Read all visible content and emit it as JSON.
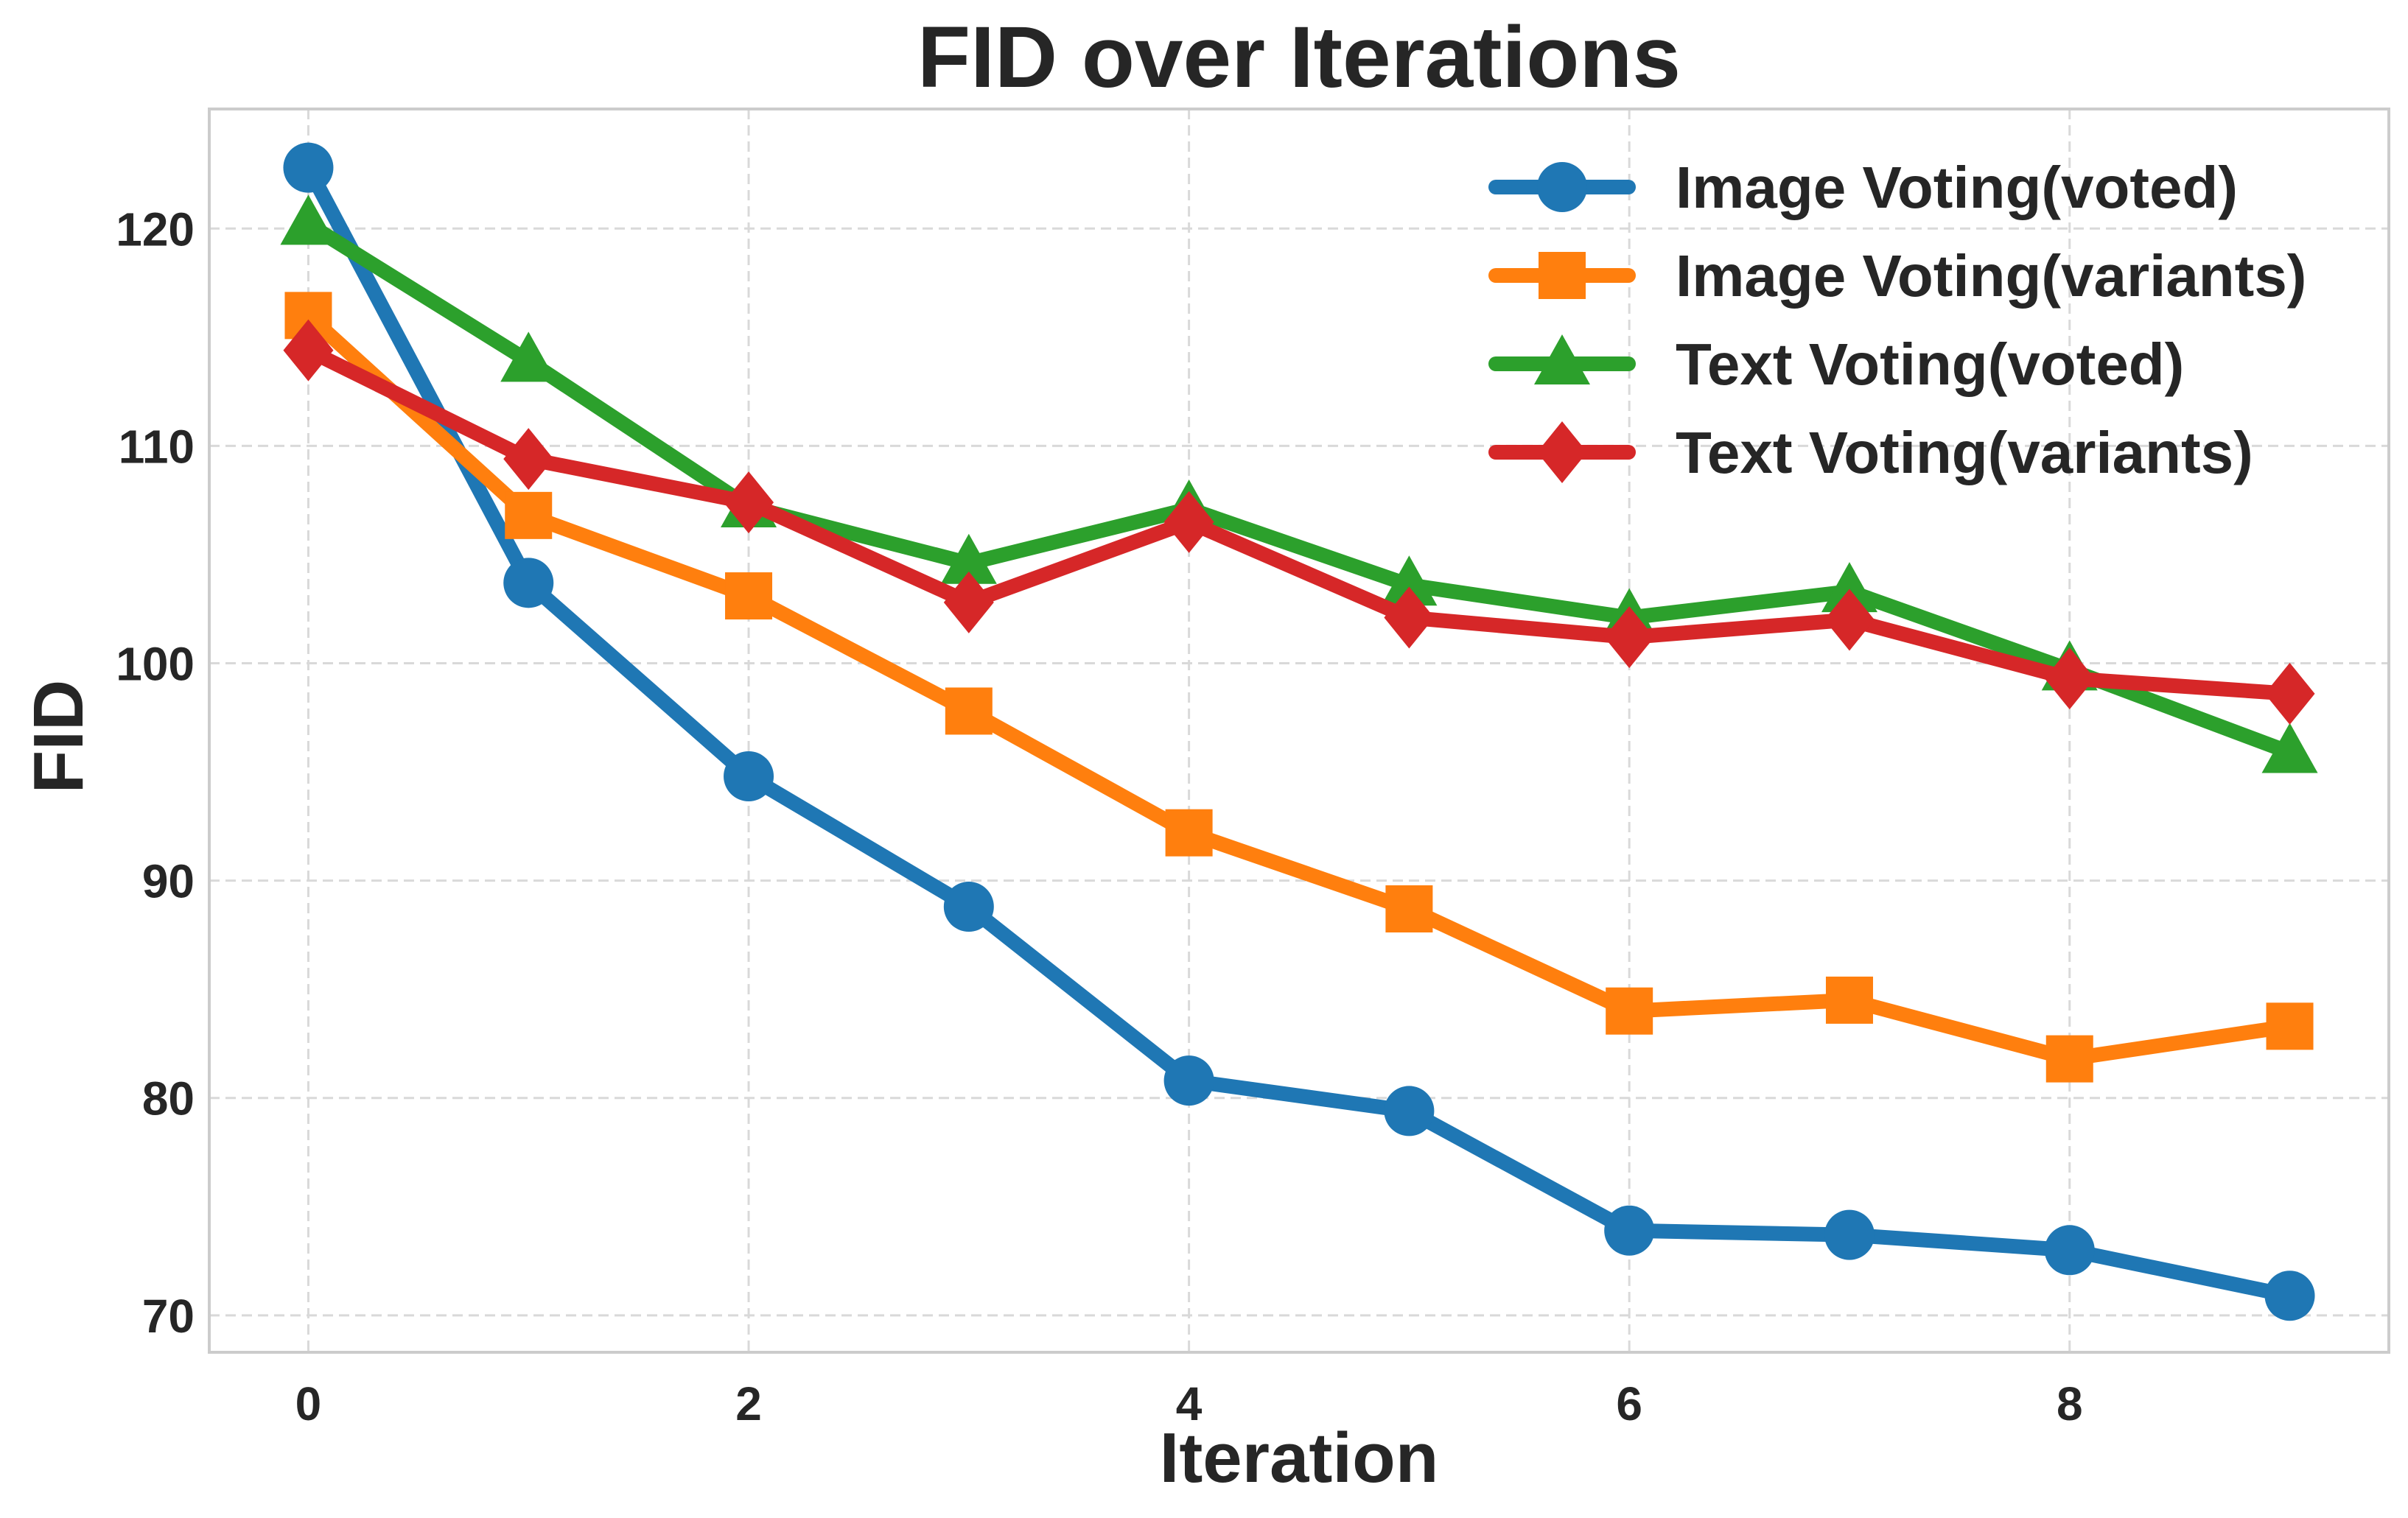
{
  "chart_data": {
    "type": "line",
    "title": "FID over Iterations",
    "xlabel": "Iteration",
    "ylabel": "FID",
    "x": [
      0,
      1,
      2,
      3,
      4,
      5,
      6,
      7,
      8,
      9
    ],
    "xlim": [
      -0.45,
      9.45
    ],
    "ylim": [
      68.3,
      125.5
    ],
    "xticks": [
      0,
      2,
      4,
      6,
      8
    ],
    "yticks": [
      70,
      80,
      90,
      100,
      110,
      120
    ],
    "grid": true,
    "legend_position": "top-right",
    "series": [
      {
        "name": "Image Voting(voted)",
        "color": "#1f77b4",
        "marker": "circle",
        "values": [
          122.8,
          103.7,
          94.8,
          88.8,
          80.8,
          79.4,
          73.9,
          73.7,
          73.0,
          70.9
        ]
      },
      {
        "name": "Image Voting(variants)",
        "color": "#ff7f0e",
        "marker": "square",
        "values": [
          116.0,
          106.8,
          103.1,
          97.8,
          92.2,
          88.7,
          84.0,
          84.5,
          81.8,
          83.3
        ]
      },
      {
        "name": "Text Voting(voted)",
        "color": "#2ca02c",
        "marker": "triangle",
        "values": [
          120.2,
          113.9,
          107.2,
          104.6,
          107.1,
          103.6,
          102.1,
          103.3,
          99.7,
          95.9
        ]
      },
      {
        "name": "Text Voting(variants)",
        "color": "#d62728",
        "marker": "diamond",
        "values": [
          114.4,
          109.4,
          107.4,
          102.8,
          106.5,
          102.1,
          101.2,
          102.0,
          99.3,
          98.6
        ]
      }
    ]
  }
}
